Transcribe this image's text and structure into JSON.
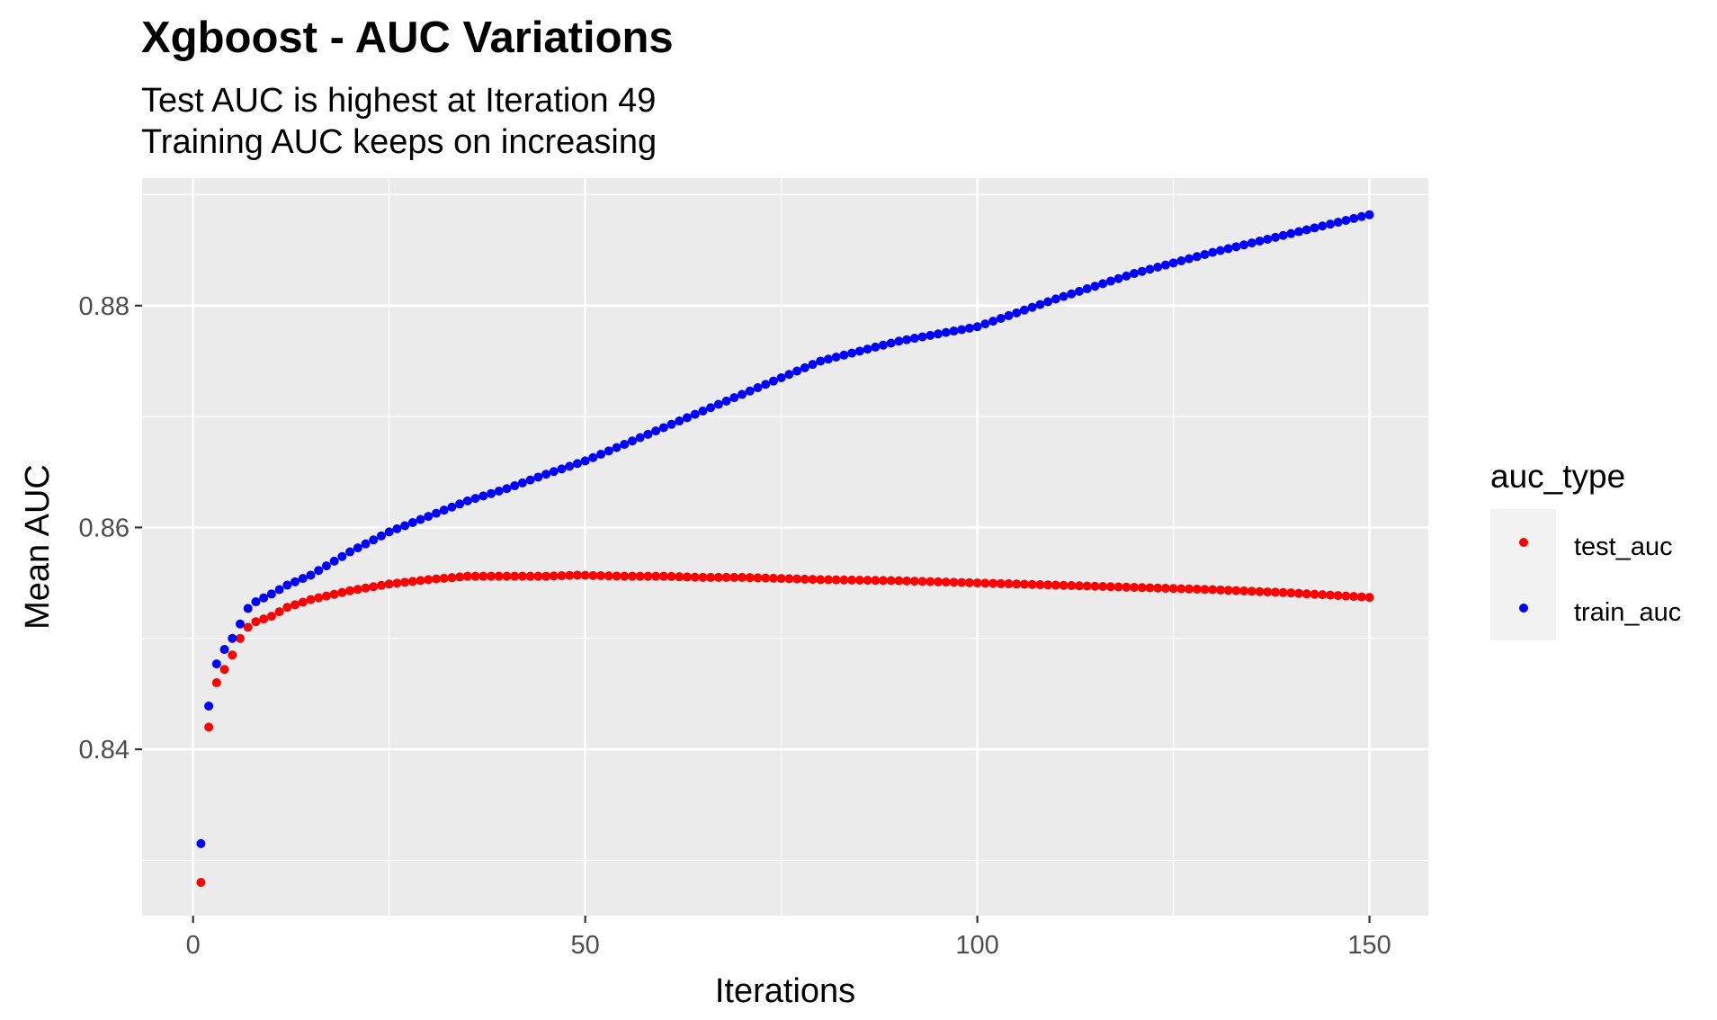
{
  "chart_data": {
    "type": "scatter",
    "title": "Xgboost - AUC Variations",
    "subtitle_lines": [
      "Test AUC is highest at Iteration 49",
      "Training AUC keeps on increasing"
    ],
    "xlabel": "Iterations",
    "ylabel": "Mean AUC",
    "xlim": [
      -6.5,
      157.5
    ],
    "ylim": [
      0.825,
      0.8915
    ],
    "x_ticks": [
      0,
      50,
      100,
      150
    ],
    "x_tick_labels": [
      "0",
      "50",
      "100",
      "150"
    ],
    "y_ticks": [
      0.84,
      0.86,
      0.88
    ],
    "y_tick_labels": [
      "0.84",
      "0.86",
      "0.88"
    ],
    "x_minor_ticks": [
      25,
      75,
      125
    ],
    "y_minor_ticks": [
      0.83,
      0.85,
      0.87,
      0.89
    ],
    "grid": true,
    "legend": {
      "title": "auc_type",
      "position": "right"
    },
    "colors": {
      "panel_background": "#ebebeb",
      "grid_line": "#ffffff",
      "test_auc": "#ff0000",
      "train_auc": "#0000ff"
    },
    "x_range": [
      1,
      150
    ],
    "series": [
      {
        "name": "test_auc",
        "color": "#ff0000",
        "key_x": [
          1,
          2,
          3,
          4,
          5,
          6,
          7,
          8,
          10,
          12,
          15,
          20,
          25,
          30,
          35,
          40,
          45,
          49,
          55,
          60,
          65,
          70,
          75,
          80,
          90,
          100,
          110,
          120,
          130,
          140,
          150
        ],
        "key_y": [
          0.828,
          0.842,
          0.846,
          0.8472,
          0.8485,
          0.85,
          0.851,
          0.8515,
          0.852,
          0.8528,
          0.8535,
          0.8543,
          0.8549,
          0.8553,
          0.8556,
          0.8556,
          0.8556,
          0.8557,
          0.8556,
          0.8556,
          0.8555,
          0.8555,
          0.8554,
          0.8553,
          0.8552,
          0.855,
          0.8548,
          0.8546,
          0.8544,
          0.8541,
          0.8537
        ]
      },
      {
        "name": "train_auc",
        "color": "#0000ff",
        "key_x": [
          1,
          2,
          3,
          4,
          5,
          6,
          7,
          8,
          10,
          12,
          15,
          20,
          25,
          30,
          35,
          40,
          45,
          50,
          60,
          70,
          80,
          90,
          100,
          110,
          120,
          130,
          140,
          150
        ],
        "key_y": [
          0.8315,
          0.8439,
          0.8477,
          0.849,
          0.85,
          0.8513,
          0.8527,
          0.8533,
          0.854,
          0.8548,
          0.8557,
          0.8578,
          0.8596,
          0.861,
          0.8624,
          0.8635,
          0.8648,
          0.866,
          0.869,
          0.872,
          0.875,
          0.8768,
          0.8781,
          0.8806,
          0.8829,
          0.8848,
          0.8865,
          0.8882
        ]
      }
    ]
  }
}
